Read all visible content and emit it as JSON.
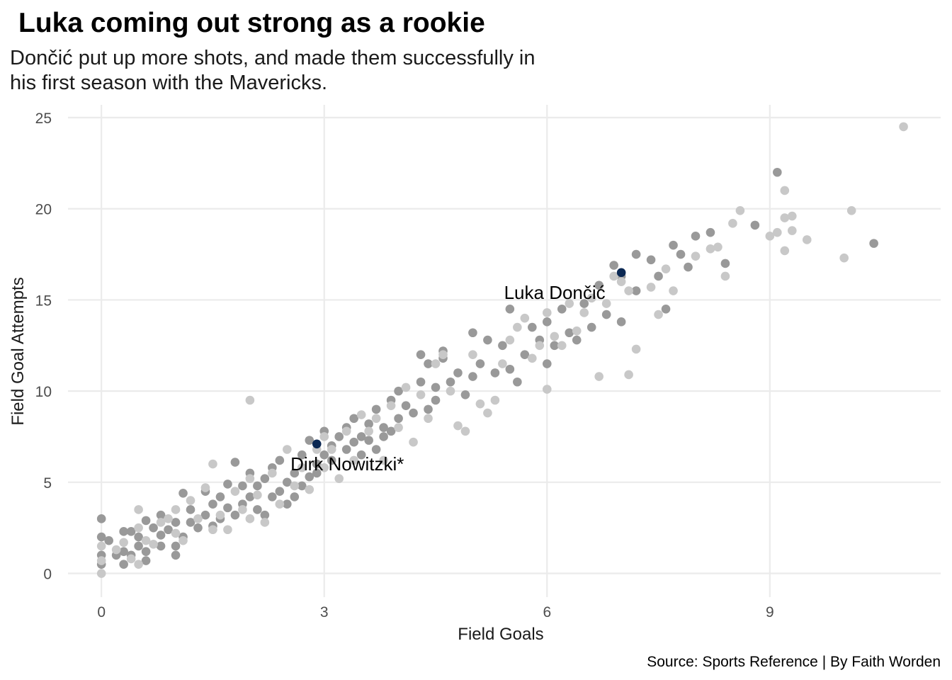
{
  "chart_data": {
    "type": "scatter",
    "title": "Luka coming out strong as a rookie",
    "subtitle_lines": [
      "Dončić put up more shots, and made them successfully in",
      "his first season with the Mavericks."
    ],
    "xlabel": "Field Goals",
    "ylabel": "Field Goal Attempts",
    "caption": "Source: Sports Reference | By Faith Worden",
    "xlim": [
      -0.45,
      11.3
    ],
    "ylim": [
      -1.3,
      25.7
    ],
    "x_ticks": [
      0,
      3,
      6,
      9
    ],
    "y_ticks": [
      0,
      5,
      10,
      15,
      20,
      25
    ],
    "grid": true,
    "colors": {
      "series_a": "#999999",
      "series_b": "#c8c8c8",
      "highlight": "#0b2853",
      "grid": "#ebebeb"
    },
    "highlights": [
      {
        "label": "Luka Dončić",
        "x": 7.0,
        "y": 16.5
      },
      {
        "label": "Dirk Nowitzki*",
        "x": 2.9,
        "y": 7.1
      }
    ],
    "series": [
      {
        "color": "#999999",
        "points": [
          [
            0,
            3
          ],
          [
            0,
            2
          ],
          [
            0,
            1
          ],
          [
            0,
            0.5
          ],
          [
            0.1,
            1.8
          ],
          [
            0.2,
            1
          ],
          [
            0.3,
            2.3
          ],
          [
            0.3,
            1.2
          ],
          [
            0.3,
            0.5
          ],
          [
            0.4,
            2.3
          ],
          [
            0.4,
            1
          ],
          [
            0.5,
            1.5
          ],
          [
            0.5,
            2
          ],
          [
            0.6,
            1.2
          ],
          [
            0.6,
            0.7
          ],
          [
            0.6,
            2.9
          ],
          [
            0.7,
            2.5
          ],
          [
            0.8,
            1.5
          ],
          [
            0.8,
            2.1
          ],
          [
            0.8,
            3.2
          ],
          [
            0.9,
            2.4
          ],
          [
            1,
            1.5
          ],
          [
            1,
            1
          ],
          [
            1,
            2.8
          ],
          [
            1.1,
            2
          ],
          [
            1.1,
            4.4
          ],
          [
            1.2,
            2.8
          ],
          [
            1.2,
            3.5
          ],
          [
            1.3,
            2.5
          ],
          [
            1.4,
            3.2
          ],
          [
            1.4,
            4.5
          ],
          [
            1.5,
            2.6
          ],
          [
            1.5,
            3.8
          ],
          [
            1.6,
            3
          ],
          [
            1.6,
            4.2
          ],
          [
            1.7,
            3.6
          ],
          [
            1.7,
            4.9
          ],
          [
            1.8,
            3.2
          ],
          [
            1.8,
            6.1
          ],
          [
            1.9,
            3.8
          ],
          [
            1.9,
            4.8
          ],
          [
            2,
            4.2
          ],
          [
            2,
            5.5
          ],
          [
            2.1,
            3.5
          ],
          [
            2.1,
            4.8
          ],
          [
            2.2,
            5.2
          ],
          [
            2.2,
            3.2
          ],
          [
            2.3,
            4.2
          ],
          [
            2.3,
            5.8
          ],
          [
            2.4,
            4.5
          ],
          [
            2.4,
            6.2
          ],
          [
            2.5,
            5
          ],
          [
            2.5,
            3.8
          ],
          [
            2.6,
            5.5
          ],
          [
            2.6,
            4.2
          ],
          [
            2.7,
            6.5
          ],
          [
            2.7,
            4.8
          ],
          [
            2.8,
            5.3
          ],
          [
            2.8,
            7.3
          ],
          [
            2.9,
            5.5
          ],
          [
            2.9,
            6
          ],
          [
            3,
            6.5
          ],
          [
            3,
            7.8
          ],
          [
            3.1,
            6.2
          ],
          [
            3.1,
            7
          ],
          [
            3.2,
            7.5
          ],
          [
            3.3,
            6.8
          ],
          [
            3.3,
            8
          ],
          [
            3.4,
            7.2
          ],
          [
            3.4,
            8.5
          ],
          [
            3.5,
            7.5
          ],
          [
            3.5,
            6.5
          ],
          [
            3.6,
            8.2
          ],
          [
            3.6,
            7.3
          ],
          [
            3.7,
            6.8
          ],
          [
            3.7,
            9
          ],
          [
            3.8,
            8
          ],
          [
            3.8,
            7.5
          ],
          [
            3.9,
            9.5
          ],
          [
            3.9,
            7.8
          ],
          [
            4,
            8.5
          ],
          [
            4,
            10
          ],
          [
            4.1,
            9.2
          ],
          [
            4.2,
            8.8
          ],
          [
            4.3,
            12
          ],
          [
            4.3,
            10.5
          ],
          [
            4.4,
            9
          ],
          [
            4.4,
            11.5
          ],
          [
            4.5,
            9.5
          ],
          [
            4.5,
            10.2
          ],
          [
            4.6,
            11.8
          ],
          [
            4.6,
            12.2
          ],
          [
            4.7,
            10.5
          ],
          [
            4.8,
            11
          ],
          [
            4.9,
            9.8
          ],
          [
            5,
            10.8
          ],
          [
            5,
            13.2
          ],
          [
            5.1,
            11.5
          ],
          [
            5.2,
            12.8
          ],
          [
            5.3,
            11
          ],
          [
            5.4,
            12.5
          ],
          [
            5.5,
            14.5
          ],
          [
            5.5,
            11.2
          ],
          [
            5.6,
            10.5
          ],
          [
            5.7,
            12
          ],
          [
            5.8,
            13.5
          ],
          [
            5.9,
            12.8
          ],
          [
            6,
            13.8
          ],
          [
            6,
            11.5
          ],
          [
            6.1,
            12.5
          ],
          [
            6.2,
            14.5
          ],
          [
            6.3,
            13.2
          ],
          [
            6.4,
            12.8
          ],
          [
            6.5,
            14.8
          ],
          [
            6.6,
            13.5
          ],
          [
            6.7,
            15.8
          ],
          [
            6.8,
            14.2
          ],
          [
            6.9,
            16.9
          ],
          [
            7,
            16.3
          ],
          [
            7,
            13.8
          ],
          [
            7.2,
            17.5
          ],
          [
            7.2,
            15.5
          ],
          [
            7.4,
            17.2
          ],
          [
            7.5,
            16.3
          ],
          [
            7.6,
            14.5
          ],
          [
            7.7,
            18
          ],
          [
            7.8,
            17.5
          ],
          [
            7.9,
            16.8
          ],
          [
            8,
            18.5
          ],
          [
            8.2,
            18.7
          ],
          [
            8.4,
            17
          ],
          [
            8.8,
            19.1
          ],
          [
            9.1,
            22
          ],
          [
            10.4,
            18.1
          ]
        ]
      },
      {
        "color": "#c8c8c8",
        "points": [
          [
            0,
            0
          ],
          [
            0,
            1.5
          ],
          [
            0,
            0.7
          ],
          [
            0.2,
            1.3
          ],
          [
            0.3,
            1.7
          ],
          [
            0.4,
            0.8
          ],
          [
            0.5,
            2.5
          ],
          [
            0.5,
            0.5
          ],
          [
            0.5,
            3.5
          ],
          [
            0.6,
            1.8
          ],
          [
            0.7,
            1.6
          ],
          [
            0.8,
            2.8
          ],
          [
            0.9,
            3
          ],
          [
            1,
            3.5
          ],
          [
            1,
            2.2
          ],
          [
            1.1,
            1.8
          ],
          [
            1.2,
            4
          ],
          [
            1.3,
            3
          ],
          [
            1.4,
            4.7
          ],
          [
            1.5,
            2.4
          ],
          [
            1.5,
            6
          ],
          [
            1.6,
            3.2
          ],
          [
            1.7,
            2.4
          ],
          [
            1.8,
            4.5
          ],
          [
            1.9,
            3.5
          ],
          [
            2,
            5.2
          ],
          [
            2,
            9.5
          ],
          [
            2,
            3
          ],
          [
            2.1,
            4.3
          ],
          [
            2.2,
            2.8
          ],
          [
            2.3,
            5.5
          ],
          [
            2.4,
            3.8
          ],
          [
            2.5,
            6.8
          ],
          [
            2.6,
            4.8
          ],
          [
            2.7,
            5.8
          ],
          [
            2.8,
            4.6
          ],
          [
            2.9,
            6.8
          ],
          [
            3,
            7.5
          ],
          [
            3,
            5.8
          ],
          [
            3.1,
            6.8
          ],
          [
            3.2,
            5.2
          ],
          [
            3.3,
            7.8
          ],
          [
            3.4,
            6.2
          ],
          [
            3.5,
            8.7
          ],
          [
            3.6,
            7.8
          ],
          [
            3.7,
            8.5
          ],
          [
            3.8,
            6.2
          ],
          [
            3.9,
            9.2
          ],
          [
            4,
            8
          ],
          [
            4.1,
            10.2
          ],
          [
            4.2,
            7.2
          ],
          [
            4.3,
            9.8
          ],
          [
            4.4,
            8.5
          ],
          [
            4.5,
            11.5
          ],
          [
            4.6,
            12
          ],
          [
            4.7,
            10
          ],
          [
            4.8,
            8.1
          ],
          [
            4.9,
            7.8
          ],
          [
            5,
            12
          ],
          [
            5.1,
            9.3
          ],
          [
            5.2,
            8.8
          ],
          [
            5.3,
            9.5
          ],
          [
            5.4,
            11.5
          ],
          [
            5.5,
            12.8
          ],
          [
            5.6,
            13.5
          ],
          [
            5.7,
            14
          ],
          [
            5.8,
            11.8
          ],
          [
            5.9,
            12.5
          ],
          [
            6,
            10.1
          ],
          [
            6,
            14.3
          ],
          [
            6.1,
            13
          ],
          [
            6.2,
            12.5
          ],
          [
            6.3,
            14.8
          ],
          [
            6.4,
            13.3
          ],
          [
            6.5,
            14.3
          ],
          [
            6.6,
            15.1
          ],
          [
            6.7,
            10.8
          ],
          [
            6.8,
            14.8
          ],
          [
            6.9,
            16.3
          ],
          [
            7,
            16
          ],
          [
            7.1,
            10.9
          ],
          [
            7.1,
            15.5
          ],
          [
            7.2,
            12.3
          ],
          [
            7.4,
            15.7
          ],
          [
            7.5,
            14.2
          ],
          [
            7.6,
            16.7
          ],
          [
            7.7,
            15.5
          ],
          [
            8,
            17.4
          ],
          [
            8.2,
            17.8
          ],
          [
            8.3,
            17.9
          ],
          [
            8.4,
            16.3
          ],
          [
            8.5,
            19.2
          ],
          [
            8.6,
            19.9
          ],
          [
            9,
            18.5
          ],
          [
            9.1,
            18.7
          ],
          [
            9.2,
            21
          ],
          [
            9.2,
            17.7
          ],
          [
            9.2,
            19.5
          ],
          [
            9.3,
            19.6
          ],
          [
            9.3,
            18.8
          ],
          [
            9.5,
            18.3
          ],
          [
            10,
            17.3
          ],
          [
            10.1,
            19.9
          ],
          [
            10.8,
            24.5
          ]
        ]
      }
    ]
  }
}
